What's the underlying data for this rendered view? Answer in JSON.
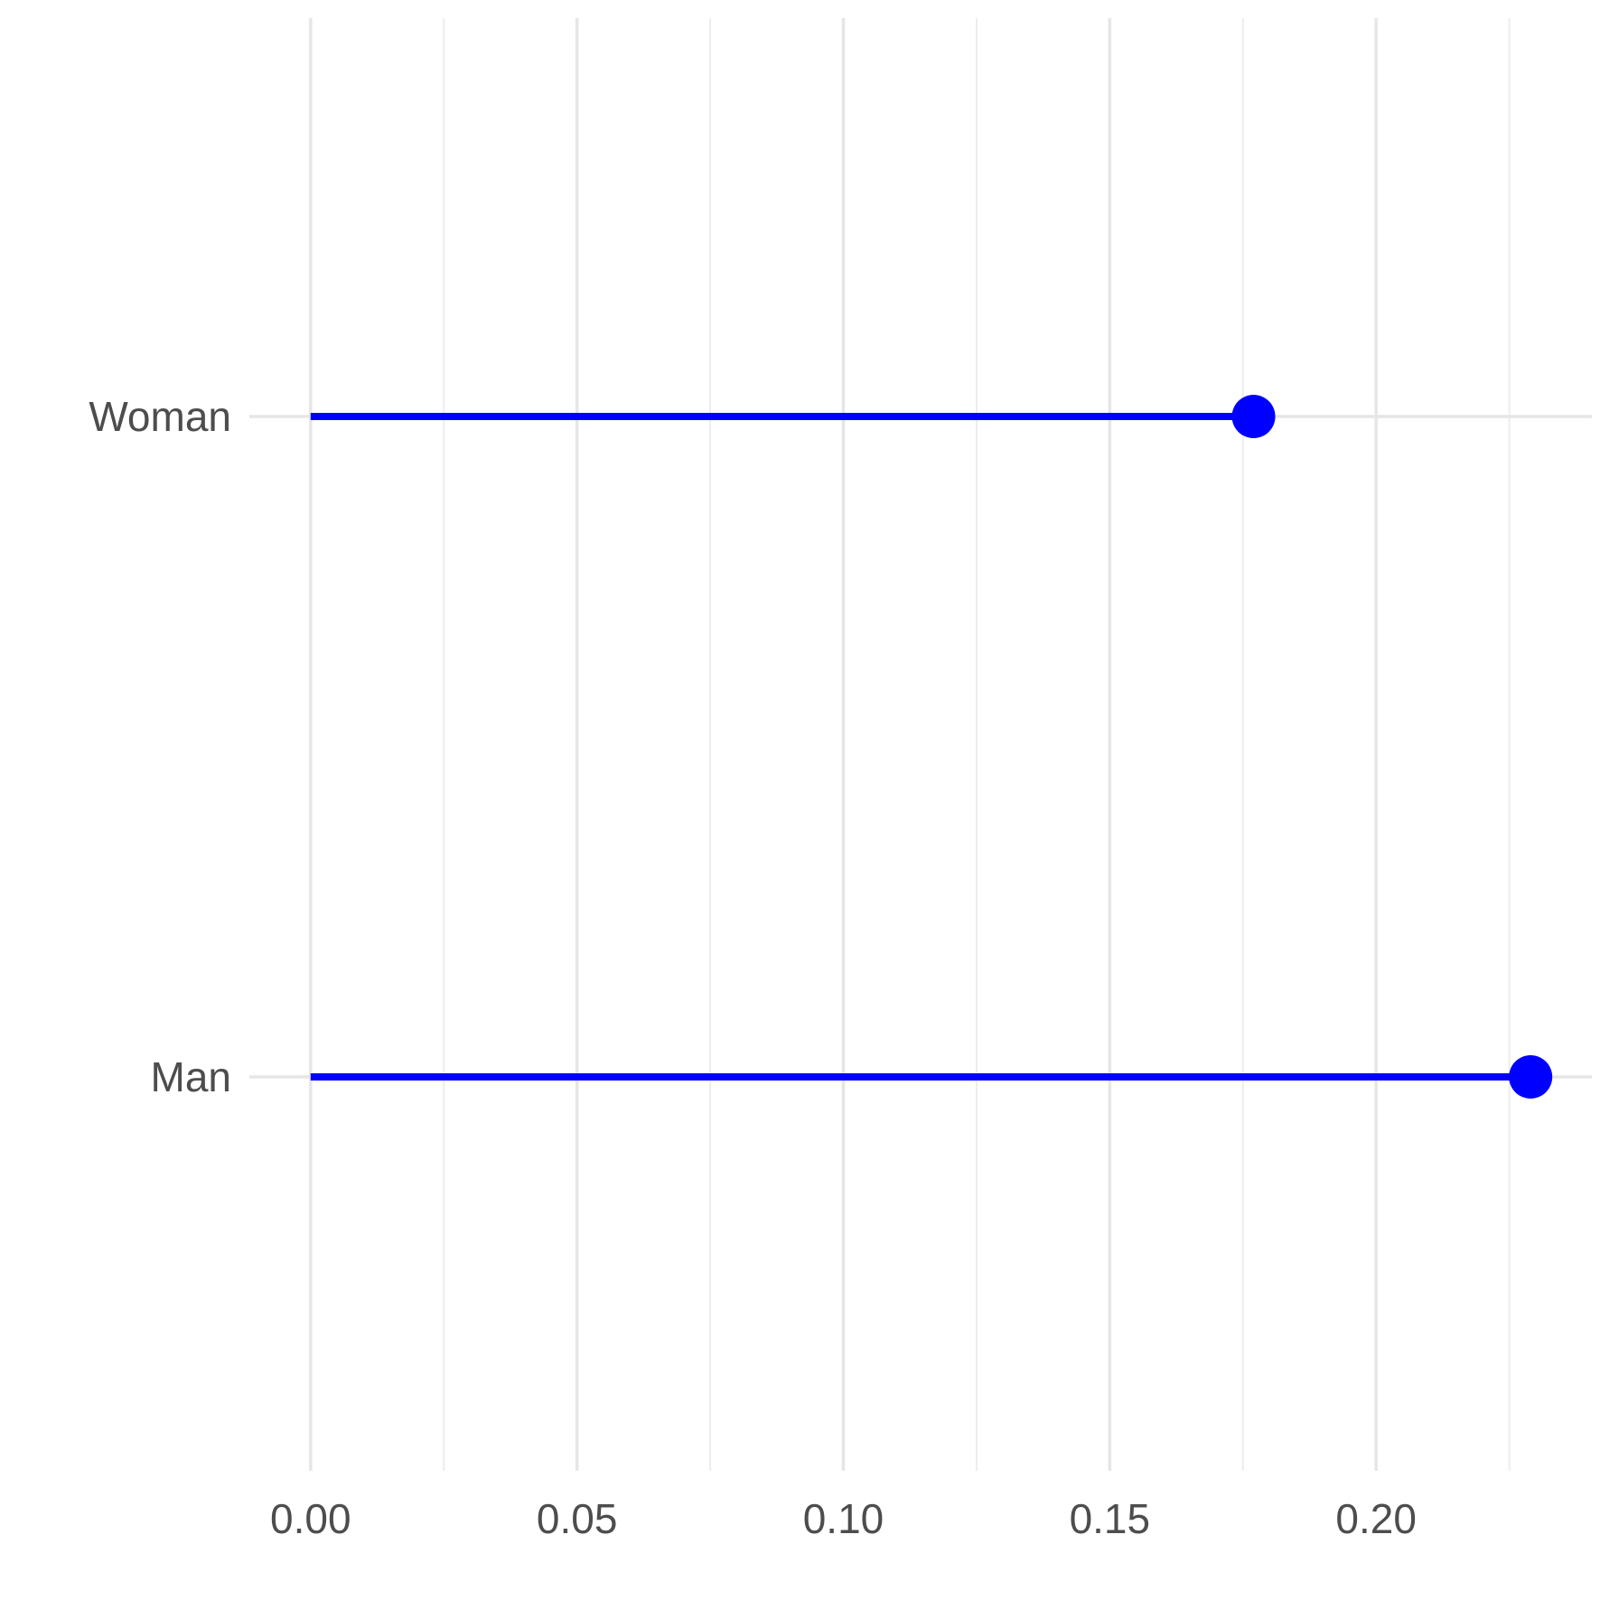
{
  "chart_data": {
    "type": "lollipop",
    "orientation": "horizontal",
    "categories": [
      "Man",
      "Woman"
    ],
    "values": [
      0.229,
      0.177
    ],
    "x_ticks": [
      {
        "value": 0.0,
        "label": "0.00"
      },
      {
        "value": 0.05,
        "label": "0.05"
      },
      {
        "value": 0.1,
        "label": "0.10"
      },
      {
        "value": 0.15,
        "label": "0.15"
      },
      {
        "value": 0.2,
        "label": "0.20"
      }
    ],
    "xlim": [
      -0.0115,
      0.2405
    ],
    "title": "",
    "xlabel": "",
    "ylabel": "",
    "grid": true,
    "legend": "none",
    "colors": {
      "lollipop": "#0000ff",
      "grid": "#ebebeb",
      "tick_text": "#4d4d4d",
      "background": "#ffffff"
    }
  }
}
